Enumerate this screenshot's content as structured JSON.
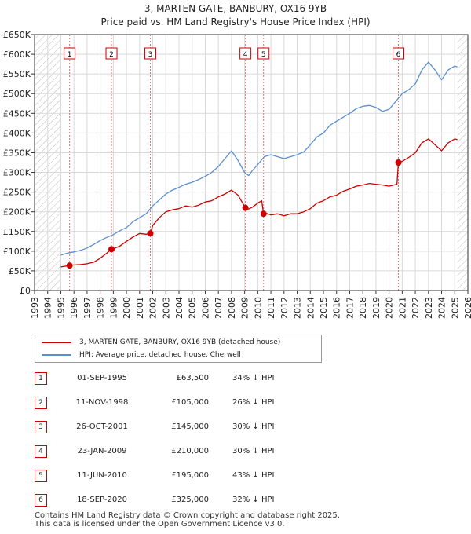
{
  "title_line1": "3, MARTEN GATE, BANBURY, OX16 9YB",
  "title_line2": "Price paid vs. HM Land Registry's House Price Index (HPI)",
  "colors": {
    "property": "#cc0000",
    "hpi": "#5b8fd0",
    "grid": "#d9d9d9",
    "hatch": "#bbbbbb",
    "marker_line": "#e07070"
  },
  "legend": {
    "property": "3, MARTEN GATE, BANBURY, OX16 9YB (detached house)",
    "hpi": "HPI: Average price, detached house, Cherwell"
  },
  "sales": [
    {
      "num": "1",
      "date": "01-SEP-1995",
      "price": "£63,500",
      "hpi": "34% ↓ HPI"
    },
    {
      "num": "2",
      "date": "11-NOV-1998",
      "price": "£105,000",
      "hpi": "26% ↓ HPI"
    },
    {
      "num": "3",
      "date": "26-OCT-2001",
      "price": "£145,000",
      "hpi": "30% ↓ HPI"
    },
    {
      "num": "4",
      "date": "23-JAN-2009",
      "price": "£210,000",
      "hpi": "30% ↓ HPI"
    },
    {
      "num": "5",
      "date": "11-JUN-2010",
      "price": "£195,000",
      "hpi": "43% ↓ HPI"
    },
    {
      "num": "6",
      "date": "18-SEP-2020",
      "price": "£325,000",
      "hpi": "32% ↓ HPI"
    }
  ],
  "footer_line1": "Contains HM Land Registry data © Crown copyright and database right 2025.",
  "footer_line2": "This data is licensed under the Open Government Licence v3.0.",
  "chart_data": {
    "type": "line",
    "title": "3, MARTEN GATE, BANBURY, OX16 9YB",
    "subtitle": "Price paid vs. HM Land Registry's House Price Index (HPI)",
    "xlabel": "",
    "ylabel": "",
    "xlim": [
      1993,
      2026
    ],
    "ylim": [
      0,
      650000
    ],
    "x_ticks": [
      "1993",
      "1994",
      "1995",
      "1996",
      "1997",
      "1998",
      "1999",
      "2000",
      "2001",
      "2002",
      "2003",
      "2004",
      "2005",
      "2006",
      "2007",
      "2008",
      "2009",
      "2010",
      "2011",
      "2012",
      "2013",
      "2014",
      "2015",
      "2016",
      "2017",
      "2018",
      "2019",
      "2020",
      "2021",
      "2022",
      "2023",
      "2024",
      "2025",
      "2026"
    ],
    "y_ticks": [
      "£0",
      "£50K",
      "£100K",
      "£150K",
      "£200K",
      "£250K",
      "£300K",
      "£350K",
      "£400K",
      "£450K",
      "£500K",
      "£550K",
      "£600K",
      "£650K"
    ],
    "y_tick_values": [
      0,
      50000,
      100000,
      150000,
      200000,
      250000,
      300000,
      350000,
      400000,
      450000,
      500000,
      550000,
      600000,
      650000
    ],
    "grid": true,
    "hatched_before": 1995.0,
    "hatched_after": 2025.2,
    "sale_markers": [
      {
        "label": "1",
        "x": 1995.67,
        "y": 63500
      },
      {
        "label": "2",
        "x": 1998.86,
        "y": 105000
      },
      {
        "label": "3",
        "x": 2001.82,
        "y": 145000
      },
      {
        "label": "4",
        "x": 2009.06,
        "y": 210000
      },
      {
        "label": "5",
        "x": 2010.44,
        "y": 195000
      },
      {
        "label": "6",
        "x": 2020.71,
        "y": 325000
      }
    ],
    "series": [
      {
        "name": "3, MARTEN GATE, BANBURY, OX16 9YB (detached house)",
        "x": [
          1995.0,
          1995.67,
          1996.0,
          1996.5,
          1997.0,
          1997.5,
          1998.0,
          1998.5,
          1998.86,
          1999.0,
          1999.5,
          2000.0,
          2000.5,
          2001.0,
          2001.5,
          2001.82,
          2002.0,
          2002.5,
          2003.0,
          2003.5,
          2004.0,
          2004.5,
          2005.0,
          2005.5,
          2006.0,
          2006.5,
          2007.0,
          2007.5,
          2008.0,
          2008.5,
          2009.06,
          2009.3,
          2009.6,
          2010.0,
          2010.3,
          2010.44,
          2010.5,
          2011.0,
          2011.5,
          2012.0,
          2012.5,
          2013.0,
          2013.5,
          2014.0,
          2014.5,
          2015.0,
          2015.5,
          2016.0,
          2016.5,
          2017.0,
          2017.5,
          2018.0,
          2018.5,
          2019.0,
          2019.5,
          2020.0,
          2020.6,
          2020.71,
          2021.0,
          2021.5,
          2022.0,
          2022.5,
          2023.0,
          2023.5,
          2024.0,
          2024.5,
          2025.0,
          2025.2
        ],
        "values": [
          60000,
          63500,
          65000,
          66000,
          68000,
          72000,
          82000,
          95000,
          105000,
          106000,
          113000,
          125000,
          136000,
          145000,
          143000,
          145000,
          165000,
          185000,
          200000,
          205000,
          208000,
          215000,
          212000,
          217000,
          225000,
          228000,
          238000,
          245000,
          255000,
          242000,
          210000,
          207000,
          212000,
          222000,
          228000,
          195000,
          198000,
          192000,
          195000,
          190000,
          195000,
          195000,
          200000,
          208000,
          222000,
          228000,
          238000,
          242000,
          252000,
          258000,
          265000,
          268000,
          272000,
          270000,
          268000,
          265000,
          270000,
          325000,
          328000,
          338000,
          350000,
          375000,
          385000,
          370000,
          355000,
          375000,
          385000,
          383000
        ]
      },
      {
        "name": "HPI: Average price, detached house, Cherwell",
        "x": [
          1995.0,
          1995.5,
          1996.0,
          1996.5,
          1997.0,
          1997.5,
          1998.0,
          1998.5,
          1999.0,
          1999.5,
          2000.0,
          2000.5,
          2001.0,
          2001.5,
          2002.0,
          2002.5,
          2003.0,
          2003.5,
          2004.0,
          2004.5,
          2005.0,
          2005.5,
          2006.0,
          2006.5,
          2007.0,
          2007.5,
          2008.0,
          2008.5,
          2009.0,
          2009.3,
          2009.6,
          2010.0,
          2010.5,
          2011.0,
          2011.5,
          2012.0,
          2012.5,
          2013.0,
          2013.5,
          2014.0,
          2014.5,
          2015.0,
          2015.5,
          2016.0,
          2016.5,
          2017.0,
          2017.5,
          2018.0,
          2018.5,
          2019.0,
          2019.5,
          2020.0,
          2020.5,
          2021.0,
          2021.5,
          2022.0,
          2022.5,
          2023.0,
          2023.5,
          2024.0,
          2024.5,
          2025.0,
          2025.2
        ],
        "values": [
          90000,
          95000,
          98000,
          102000,
          108000,
          117000,
          127000,
          135000,
          142000,
          152000,
          160000,
          175000,
          185000,
          195000,
          215000,
          230000,
          245000,
          255000,
          262000,
          270000,
          275000,
          282000,
          290000,
          300000,
          315000,
          335000,
          355000,
          330000,
          300000,
          292000,
          305000,
          320000,
          340000,
          345000,
          340000,
          335000,
          340000,
          345000,
          352000,
          370000,
          390000,
          400000,
          420000,
          430000,
          440000,
          450000,
          462000,
          468000,
          470000,
          465000,
          455000,
          460000,
          480000,
          500000,
          510000,
          525000,
          560000,
          580000,
          560000,
          535000,
          560000,
          570000,
          568000
        ]
      }
    ]
  }
}
